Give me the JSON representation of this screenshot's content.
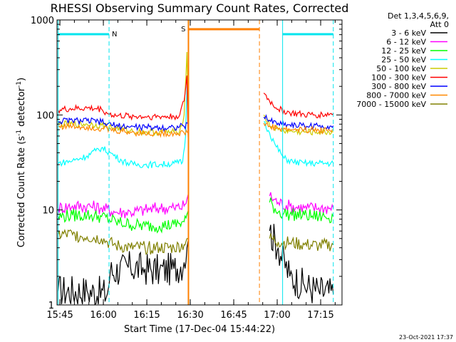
{
  "chart_data": {
    "type": "line",
    "title": "RHESSI Observing Summary Count Rates, Corrected",
    "xlabel": "Start Time (17-Dec-04 15:44:22)",
    "ylabel_main": "Corrected Count Rate (s",
    "ylabel_sup1": "-1",
    "ylabel_mid": " detector",
    "ylabel_sup2": "-1",
    "ylabel_end": ")",
    "yscale": "log",
    "ylim": [
      1,
      1000
    ],
    "xlim_minutes": [
      -0.367,
      98
    ],
    "x_tick_labels": [
      "15:45",
      "16:00",
      "16:15",
      "16:30",
      "16:45",
      "17:00",
      "17:15"
    ],
    "x_tick_minutes": [
      0.633,
      15.633,
      30.633,
      45.633,
      60.633,
      75.633,
      90.633
    ],
    "y_tick_labels": [
      "1",
      "10",
      "100",
      "1000"
    ],
    "y_tick_values": [
      1,
      10,
      100,
      1000
    ],
    "legend": {
      "header_line1": "Det 1,3,4,5,6,9,",
      "header_line2": "Att 0",
      "placement": "right"
    },
    "footer_date": "23-Oct-2021 17:37",
    "markers": {
      "night_label": "N",
      "saa_label": "S"
    },
    "intervals": {
      "night": [
        {
          "start_min": 0,
          "end_min": 17.6
        },
        {
          "start_min": 77.5,
          "end_min": 95
        }
      ],
      "saa": {
        "start_min": 45.0,
        "end_min": 69.5
      }
    },
    "series": [
      {
        "name": "3 - 6 keV",
        "color": "#000000",
        "x": [
          0,
          10,
          17,
          18,
          25,
          30,
          35,
          40,
          43.5,
          44.5,
          45,
          70,
          73,
          76,
          80,
          85,
          90,
          95
        ],
        "y": [
          1.4,
          1.4,
          1.3,
          2.2,
          2.5,
          2.4,
          2.3,
          2.4,
          2.8,
          4,
          5,
          null,
          6,
          4,
          2.0,
          1.6,
          1.4,
          1.3
        ]
      },
      {
        "name": "6 - 12 keV",
        "color": "#ff00ff",
        "x": [
          0,
          5,
          10,
          15,
          20,
          25,
          30,
          35,
          40,
          43.5,
          44.5,
          45,
          70,
          73,
          76,
          80,
          85,
          90,
          95
        ],
        "y": [
          10.5,
          11,
          11,
          10.5,
          9.5,
          9.5,
          10,
          10.5,
          10.5,
          11,
          13,
          15,
          null,
          14,
          12,
          11,
          10.5,
          10.5,
          10.5
        ]
      },
      {
        "name": "12 - 25 keV",
        "color": "#00ff00",
        "x": [
          0,
          5,
          10,
          15,
          20,
          25,
          30,
          35,
          40,
          43.5,
          44.5,
          45,
          70,
          73,
          76,
          80,
          85,
          90,
          95
        ],
        "y": [
          8.5,
          8.8,
          8.8,
          8.5,
          7.5,
          7.0,
          6.8,
          6.8,
          7.0,
          7.5,
          9,
          10,
          null,
          12,
          9.5,
          9,
          8.8,
          8.5,
          8.5
        ]
      },
      {
        "name": "25 - 50 keV",
        "color": "#00ffff",
        "x": [
          0,
          5,
          10,
          13,
          15,
          18,
          22,
          26,
          30,
          35,
          40,
          43,
          44,
          44.5,
          45,
          70,
          71,
          73,
          75,
          78,
          81,
          85,
          90,
          95
        ],
        "y": [
          31,
          33,
          37,
          42,
          45,
          40,
          33,
          30,
          30,
          30,
          31,
          32,
          60,
          200,
          90,
          null,
          85,
          65,
          48,
          35,
          32,
          31,
          31,
          31
        ]
      },
      {
        "name": "50 - 100 keV",
        "color": "#cccc00",
        "x": [
          0,
          5,
          10,
          15,
          20,
          25,
          30,
          35,
          40,
          42,
          43.5,
          44.5,
          45,
          70,
          71,
          73,
          76,
          80,
          85,
          90,
          95
        ],
        "y": [
          80,
          80,
          80,
          78,
          72,
          68,
          66,
          66,
          66,
          68,
          100,
          460,
          70,
          null,
          100,
          78,
          70,
          67,
          66,
          66,
          66
        ]
      },
      {
        "name": "100 - 300 keV",
        "color": "#ff0000",
        "x": [
          0,
          5,
          10,
          15,
          17,
          20,
          25,
          30,
          35,
          40,
          42,
          43.5,
          44.5,
          45,
          70,
          71,
          73,
          76,
          80,
          85,
          90,
          95
        ],
        "y": [
          113,
          116,
          118,
          115,
          104,
          98,
          97,
          96,
          96,
          96,
          100,
          140,
          260,
          40,
          null,
          170,
          140,
          115,
          105,
          100,
          100,
          103
        ]
      },
      {
        "name": "300 - 800 keV",
        "color": "#0000ff",
        "x": [
          0,
          5,
          10,
          15,
          17,
          20,
          25,
          30,
          35,
          40,
          43.5,
          45,
          70,
          71,
          73,
          76,
          80,
          85,
          90,
          95
        ],
        "y": [
          86,
          87,
          87,
          84,
          80,
          77,
          75,
          74,
          74,
          74,
          76,
          80,
          null,
          95,
          88,
          82,
          79,
          77,
          76,
          77
        ]
      },
      {
        "name": "800 - 7000 keV",
        "color": "#ff8800",
        "x": [
          0,
          5,
          10,
          15,
          20,
          25,
          30,
          35,
          40,
          43.5,
          45,
          70,
          71,
          73,
          76,
          80,
          85,
          90,
          95
        ],
        "y": [
          76,
          76,
          75,
          72,
          68,
          66,
          64,
          64,
          64,
          65,
          66,
          null,
          82,
          76,
          72,
          70,
          70,
          69,
          70
        ]
      },
      {
        "name": "7000 - 15000 keV",
        "color": "#808000",
        "x": [
          0,
          5,
          10,
          15,
          17,
          20,
          25,
          30,
          35,
          40,
          43.5,
          44.5,
          45,
          70,
          73,
          76,
          80,
          85,
          90,
          95
        ],
        "y": [
          5.5,
          5.5,
          5.2,
          5.0,
          4.6,
          4.2,
          4.0,
          4.0,
          4.0,
          4.0,
          4.3,
          5,
          5,
          null,
          5,
          4.6,
          4.5,
          4.3,
          4.2,
          4.3
        ]
      }
    ]
  }
}
